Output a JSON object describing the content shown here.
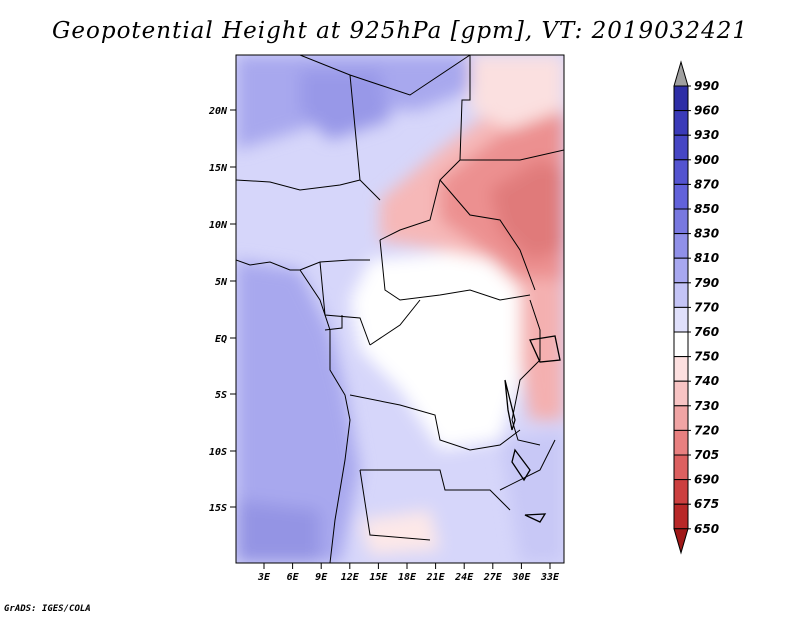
{
  "title": "Geopotential Height at 925hPa [gpm], VT: 2019032421",
  "credit": "GrADS: IGES/COLA",
  "map": {
    "lat_labels": [
      "20N",
      "15N",
      "10N",
      "5N",
      "EQ",
      "5S",
      "10S",
      "15S"
    ],
    "lon_labels": [
      "3E",
      "6E",
      "9E",
      "12E",
      "15E",
      "18E",
      "21E",
      "24E",
      "27E",
      "30E",
      "33E"
    ]
  },
  "colorbar": {
    "levels": [
      "990",
      "960",
      "930",
      "900",
      "870",
      "850",
      "830",
      "810",
      "790",
      "770",
      "760",
      "750",
      "740",
      "730",
      "720",
      "705",
      "690",
      "675",
      "650"
    ],
    "colors": [
      "#2e2ea6",
      "#3a3ab8",
      "#4646c4",
      "#5454d0",
      "#6262da",
      "#7878e0",
      "#9090e8",
      "#a8a8f0",
      "#c4c4f6",
      "#e0e0fb",
      "#ffffff",
      "#fde0e0",
      "#f8c4c4",
      "#f0a4a4",
      "#e88080",
      "#dc6060",
      "#cc4040",
      "#b82828",
      "#a01818"
    ],
    "top_arrow_color": "#a0a0a0",
    "bottom_arrow_color": "#a01818"
  }
}
